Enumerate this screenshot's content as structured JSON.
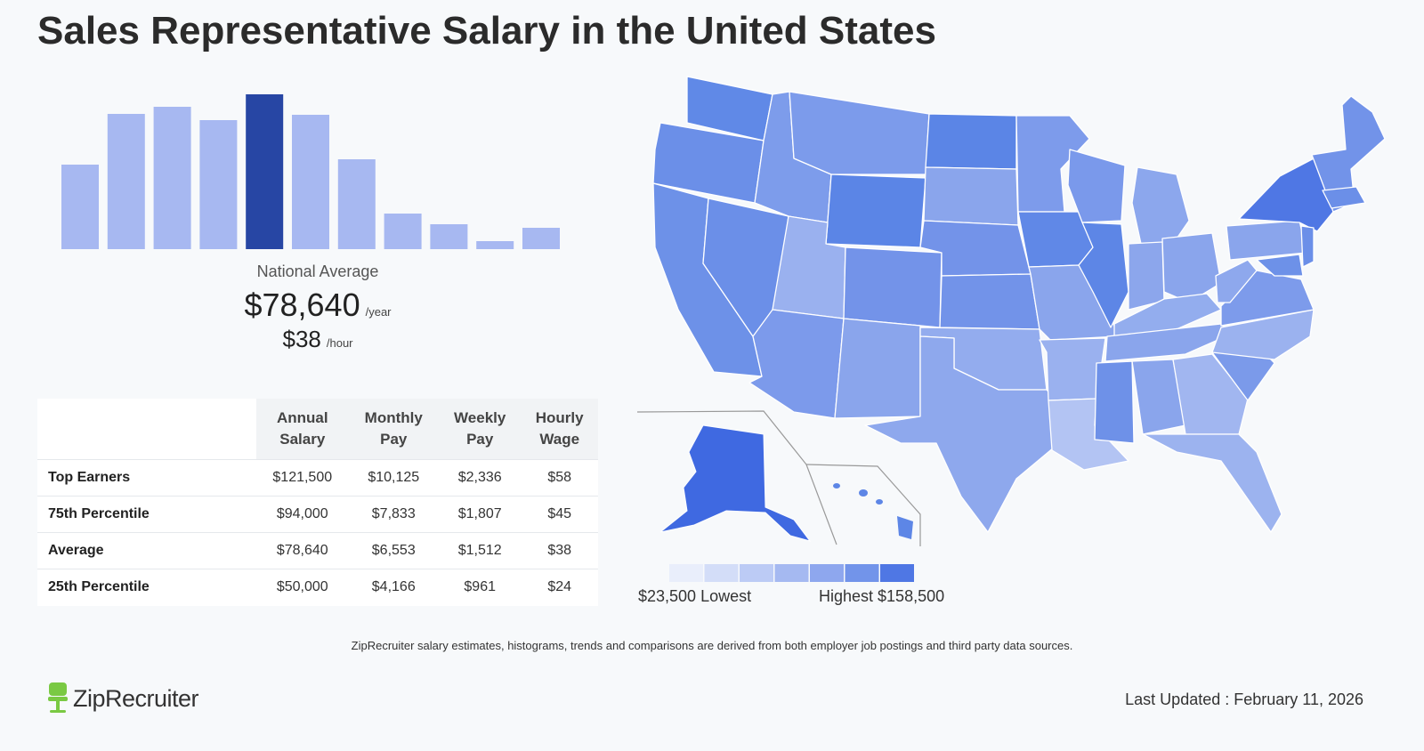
{
  "title": "Sales Representative Salary in the United States",
  "chart_data": {
    "type": "bar",
    "highlight_index": 4,
    "values": [
      95,
      152,
      160,
      145,
      174,
      151,
      101,
      40,
      28,
      9,
      24
    ],
    "colors": {
      "base": "#a7b8f1",
      "highlight": "#2746a4"
    }
  },
  "national_average": {
    "label": "National Average",
    "annual": "$78,640",
    "annual_unit": "/year",
    "hourly": "$38",
    "hourly_unit": "/hour"
  },
  "table": {
    "headers": [
      [
        "Annual",
        "Salary"
      ],
      [
        "Monthly",
        "Pay"
      ],
      [
        "Weekly",
        "Pay"
      ],
      [
        "Hourly",
        "Wage"
      ]
    ],
    "rows": [
      {
        "label": "Top Earners",
        "values": [
          "$121,500",
          "$10,125",
          "$2,336",
          "$58"
        ]
      },
      {
        "label": "75th Percentile",
        "values": [
          "$94,000",
          "$7,833",
          "$1,807",
          "$45"
        ]
      },
      {
        "label": "Average",
        "values": [
          "$78,640",
          "$6,553",
          "$1,512",
          "$38"
        ]
      },
      {
        "label": "25th Percentile",
        "values": [
          "$50,000",
          "$4,166",
          "$961",
          "$24"
        ]
      }
    ]
  },
  "legend": {
    "low": "$23,500 Lowest",
    "high": "Highest $158,500",
    "colors": [
      "#e9eefb",
      "#d3ddf8",
      "#bccbf5",
      "#a5b9f1",
      "#8ea7ee",
      "#7294ea",
      "#4f77e4"
    ]
  },
  "footnote": "ZipRecruiter salary estimates, histograms, trends and comparisons are derived from both employer job postings and third party data sources.",
  "logo": {
    "text": "ZipRecruiter"
  },
  "last_updated": "Last Updated : February 11, 2026"
}
